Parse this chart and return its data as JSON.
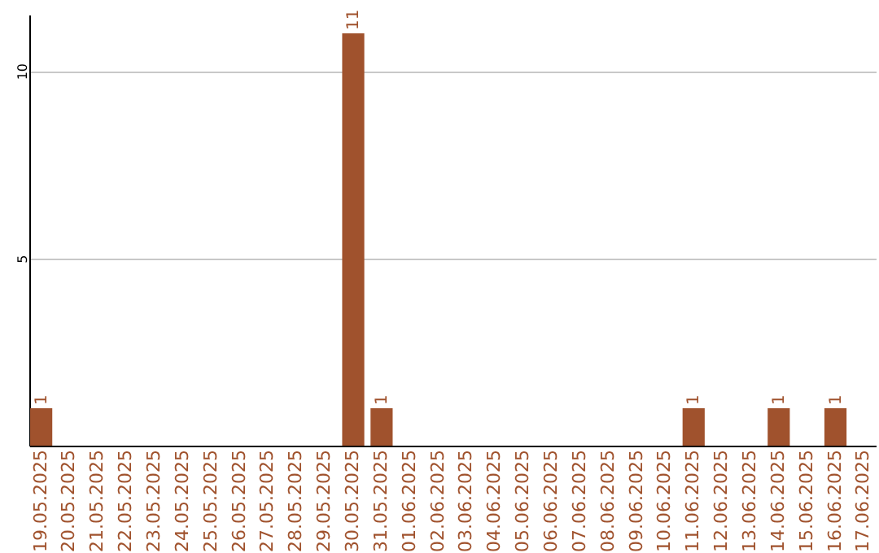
{
  "chart_data": {
    "type": "bar",
    "categories": [
      "19.05.2025",
      "20.05.2025",
      "21.05.2025",
      "22.05.2025",
      "23.05.2025",
      "24.05.2025",
      "25.05.2025",
      "26.05.2025",
      "27.05.2025",
      "28.05.2025",
      "29.05.2025",
      "30.05.2025",
      "31.05.2025",
      "01.06.2025",
      "02.06.2025",
      "03.06.2025",
      "04.06.2025",
      "05.06.2025",
      "06.06.2025",
      "07.06.2025",
      "08.06.2025",
      "09.06.2025",
      "10.06.2025",
      "11.06.2025",
      "12.06.2025",
      "13.06.2025",
      "14.06.2025",
      "15.06.2025",
      "16.06.2025",
      "17.06.2025"
    ],
    "values": [
      1,
      0,
      0,
      0,
      0,
      0,
      0,
      0,
      0,
      0,
      0,
      11,
      1,
      0,
      0,
      0,
      0,
      0,
      0,
      0,
      0,
      0,
      0,
      1,
      0,
      0,
      1,
      0,
      1,
      0
    ],
    "value_labels": [
      "1",
      null,
      null,
      null,
      null,
      null,
      null,
      null,
      null,
      null,
      null,
      "11",
      "1",
      null,
      null,
      null,
      null,
      null,
      null,
      null,
      null,
      null,
      null,
      "1",
      null,
      null,
      "1",
      null,
      "1",
      null
    ],
    "color": "#a0522d",
    "ylim": [
      0,
      11.5
    ],
    "yticks": [
      5,
      10
    ],
    "grid": "y"
  }
}
